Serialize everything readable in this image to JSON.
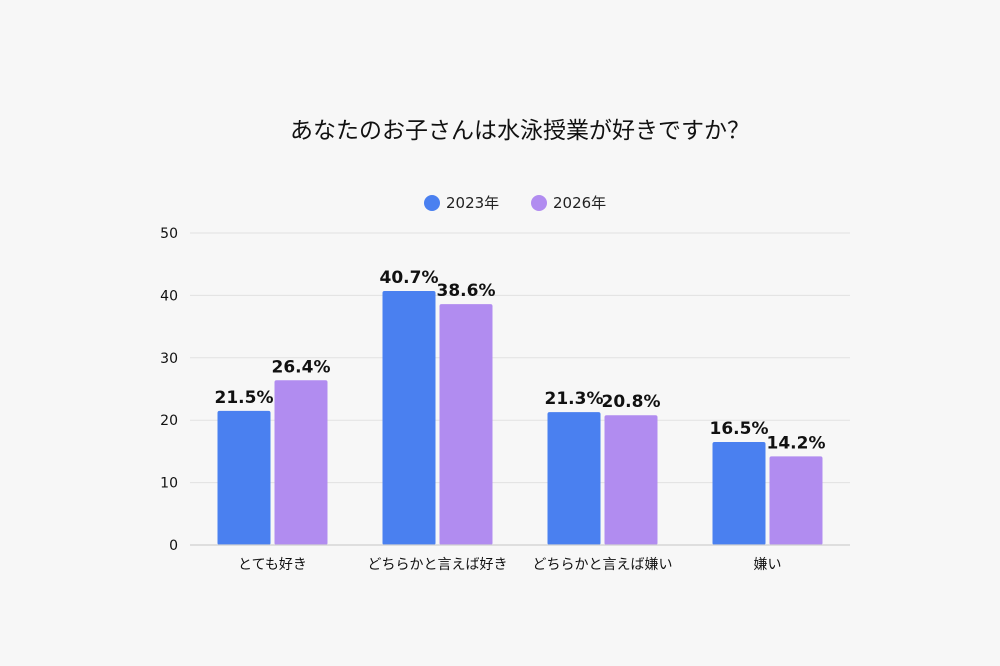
{
  "chart_data": {
    "type": "bar",
    "title": "あなたのお子さんは水泳授業が好きですか？",
    "categories": [
      "とても好き",
      "どちらかと言えば好き",
      "どちらかと言えば嫌い",
      "嫌い"
    ],
    "series": [
      {
        "name": "2023年",
        "values": [
          21.5,
          40.7,
          21.3,
          16.5
        ],
        "labels": [
          "21.5%",
          "40.7%",
          "21.3%",
          "16.5%"
        ],
        "color": "#4a80f0"
      },
      {
        "name": "2026年",
        "values": [
          26.4,
          38.6,
          20.8,
          14.2
        ],
        "labels": [
          "26.4%",
          "38.6%",
          "20.8%",
          "14.2%"
        ],
        "color": "#b18cf0"
      }
    ],
    "yticks": [
      "0",
      "10",
      "20",
      "30",
      "40",
      "50"
    ],
    "ylim": [
      0,
      50
    ],
    "xlabel": "",
    "ylabel": "",
    "legend_position": "top-center",
    "grid": true
  }
}
